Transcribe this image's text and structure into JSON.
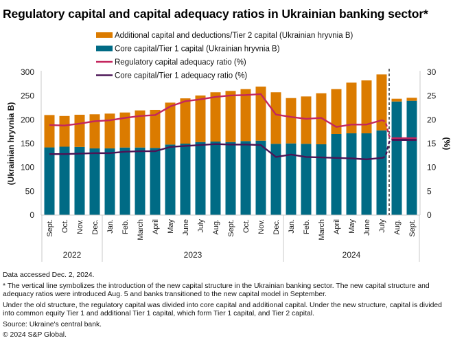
{
  "title": "Regulatory capital and capital adequacy ratios in Ukrainian banking sector*",
  "notes": {
    "accessed": "Data accessed Dec. 2, 2024.",
    "footnote1": "* The vertical line symbolizes the introduction of the new capital structure in the Ukrainian banking sector. The new capital structure and adequacy ratios were introduced Aug. 5 and banks transitioned to the new capital model in September.",
    "footnote2": "Under the old structure, the regulatory capital was divided into core capital and additional capital. Under the new structure, capital is divided into common equity Tier 1 and additional Tier 1 capital, which form Tier 1 capital, and Tier 2 capital.",
    "source": "Source: Ukraine's central bank.",
    "copyright": "© 2024 S&P Global."
  },
  "chart_data": {
    "type": "bar",
    "title": "Regulatory capital and capital adequacy ratios in Ukrainian banking sector*",
    "categories": [
      "Sept.",
      "Oct.",
      "Nov.",
      "Dec.",
      "Jan.",
      "Feb.",
      "March",
      "April",
      "May",
      "June",
      "July",
      "Aug.",
      "Sept.",
      "Oct.",
      "Nov.",
      "Dec.",
      "Jan.",
      "Feb.",
      "March",
      "April",
      "May",
      "June",
      "July",
      "Aug.",
      "Sept."
    ],
    "year_groups": [
      {
        "label": "2022",
        "start": 0,
        "end": 3
      },
      {
        "label": "2023",
        "start": 4,
        "end": 15
      },
      {
        "label": "2024",
        "start": 16,
        "end": 24
      }
    ],
    "ylabel": "(Ukrainian hryvnia B)",
    "ylabel_right": "(%)",
    "ylim": [
      0,
      300
    ],
    "yticks": [
      0,
      50,
      100,
      150,
      200,
      250,
      300
    ],
    "ylim_right": [
      0,
      30
    ],
    "yticks_right": [
      0,
      5,
      10,
      15,
      20,
      25,
      30
    ],
    "grid": false,
    "legend_position": "top-center",
    "vertical_marker": {
      "between": [
        "July",
        "Aug."
      ],
      "year": "2024",
      "style": "dashed"
    },
    "series": [
      {
        "name": "Core capital/Tier 1 capital (Ukrainian hryvnia B)",
        "type": "stacked-bar",
        "color": "#006B85",
        "axis": "left",
        "values": [
          142,
          143.5,
          143,
          140,
          140,
          141.8,
          141.8,
          141,
          148,
          150,
          153.3,
          154.3,
          153.3,
          155.3,
          156.2,
          149.6,
          150.4,
          149.6,
          148.6,
          170.2,
          171.6,
          171.6,
          177.8,
          238.4,
          239.9
        ]
      },
      {
        "name": "Additional capital and deductions/Tier 2 capital (Ukrainian hryvnia B)",
        "type": "stacked-bar",
        "color": "#DB7B00",
        "axis": "left",
        "values": [
          68,
          64.5,
          67.6,
          71.6,
          73,
          73.5,
          77.9,
          79.7,
          88,
          95,
          97.7,
          103.5,
          107.3,
          109.1,
          113.5,
          108.2,
          95.2,
          99.4,
          107.1,
          94.2,
          106.4,
          111.1,
          117.4,
          5.8,
          6.3
        ]
      },
      {
        "name": "Regulatory capital adequacy ratio (%)",
        "type": "line",
        "color": "#C4265E",
        "axis": "right",
        "values": [
          18.9,
          18.8,
          19.2,
          19.7,
          19.9,
          20.4,
          20.8,
          21.0,
          22.8,
          23.9,
          24.3,
          24.8,
          25.1,
          25.2,
          25.4,
          21.1,
          20.6,
          20.2,
          20.4,
          18.5,
          19.0,
          19.0,
          19.9,
          16.1,
          16.1
        ]
      },
      {
        "name": "Core capital/Tier 1 adequacy ratio (%)",
        "type": "line",
        "color": "#4B1556",
        "axis": "right",
        "values": [
          12.8,
          12.8,
          12.9,
          13.0,
          13.0,
          13.3,
          13.4,
          13.4,
          14.3,
          14.5,
          14.7,
          14.9,
          14.8,
          14.8,
          14.7,
          12.2,
          12.7,
          12.2,
          12.1,
          12.0,
          11.9,
          11.7,
          12.0,
          15.8,
          15.8
        ]
      }
    ],
    "legend": [
      {
        "label": "Additional capital and deductions/Tier 2 capital (Ukrainian hryvnia B)",
        "kind": "bar",
        "color": "#DB7B00"
      },
      {
        "label": "Core capital/Tier 1 capital (Ukrainian hryvnia B)",
        "kind": "bar",
        "color": "#006B85"
      },
      {
        "label": "Regulatory capital adequacy ratio (%)",
        "kind": "line",
        "color": "#C4265E"
      },
      {
        "label": "Core capital/Tier 1 adequacy ratio (%)",
        "kind": "line",
        "color": "#4B1556"
      }
    ]
  }
}
